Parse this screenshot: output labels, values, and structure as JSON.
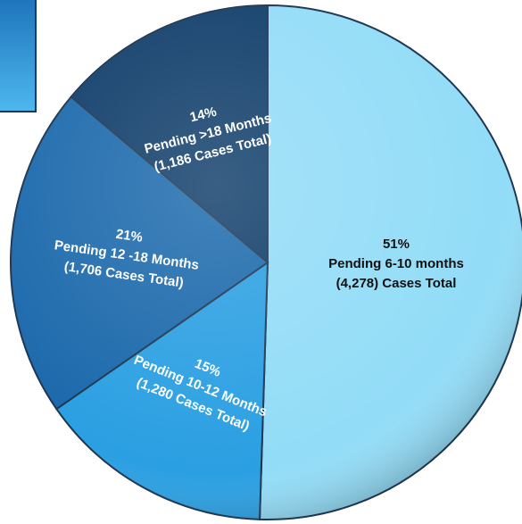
{
  "chart_data": {
    "type": "pie",
    "categories": [
      "Pending 6-10 months",
      "Pending 10-12 Months",
      "Pending 12 -18 Months",
      "Pending >18 Months"
    ],
    "values": [
      51,
      15,
      21,
      14
    ],
    "value_labels": [
      "51%",
      "15%",
      "21%",
      "14%"
    ],
    "details": [
      "(4,278) Cases Total",
      "(1,280 Cases Total)",
      "(1,706 Cases Total)",
      "(1,186 Cases Total)"
    ],
    "colors": [
      "#92dcf7",
      "#2a9fe2",
      "#1a68ab",
      "#0e3c69"
    ],
    "label_colors": [
      "#111111",
      "#ffffff",
      "#ffffff",
      "#ffffff"
    ]
  }
}
